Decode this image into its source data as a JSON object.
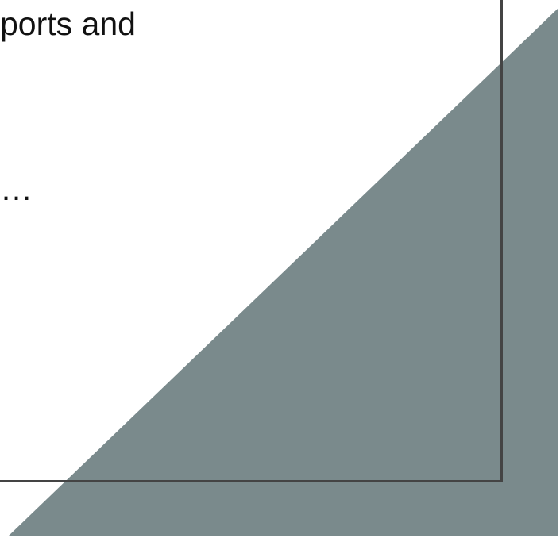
{
  "slide": {
    "text_line_1": "ports and",
    "text_line_2": "…"
  },
  "colors": {
    "triangle_fill": "#7A8A8C",
    "frame_border": "#444444",
    "text": "#111111"
  }
}
